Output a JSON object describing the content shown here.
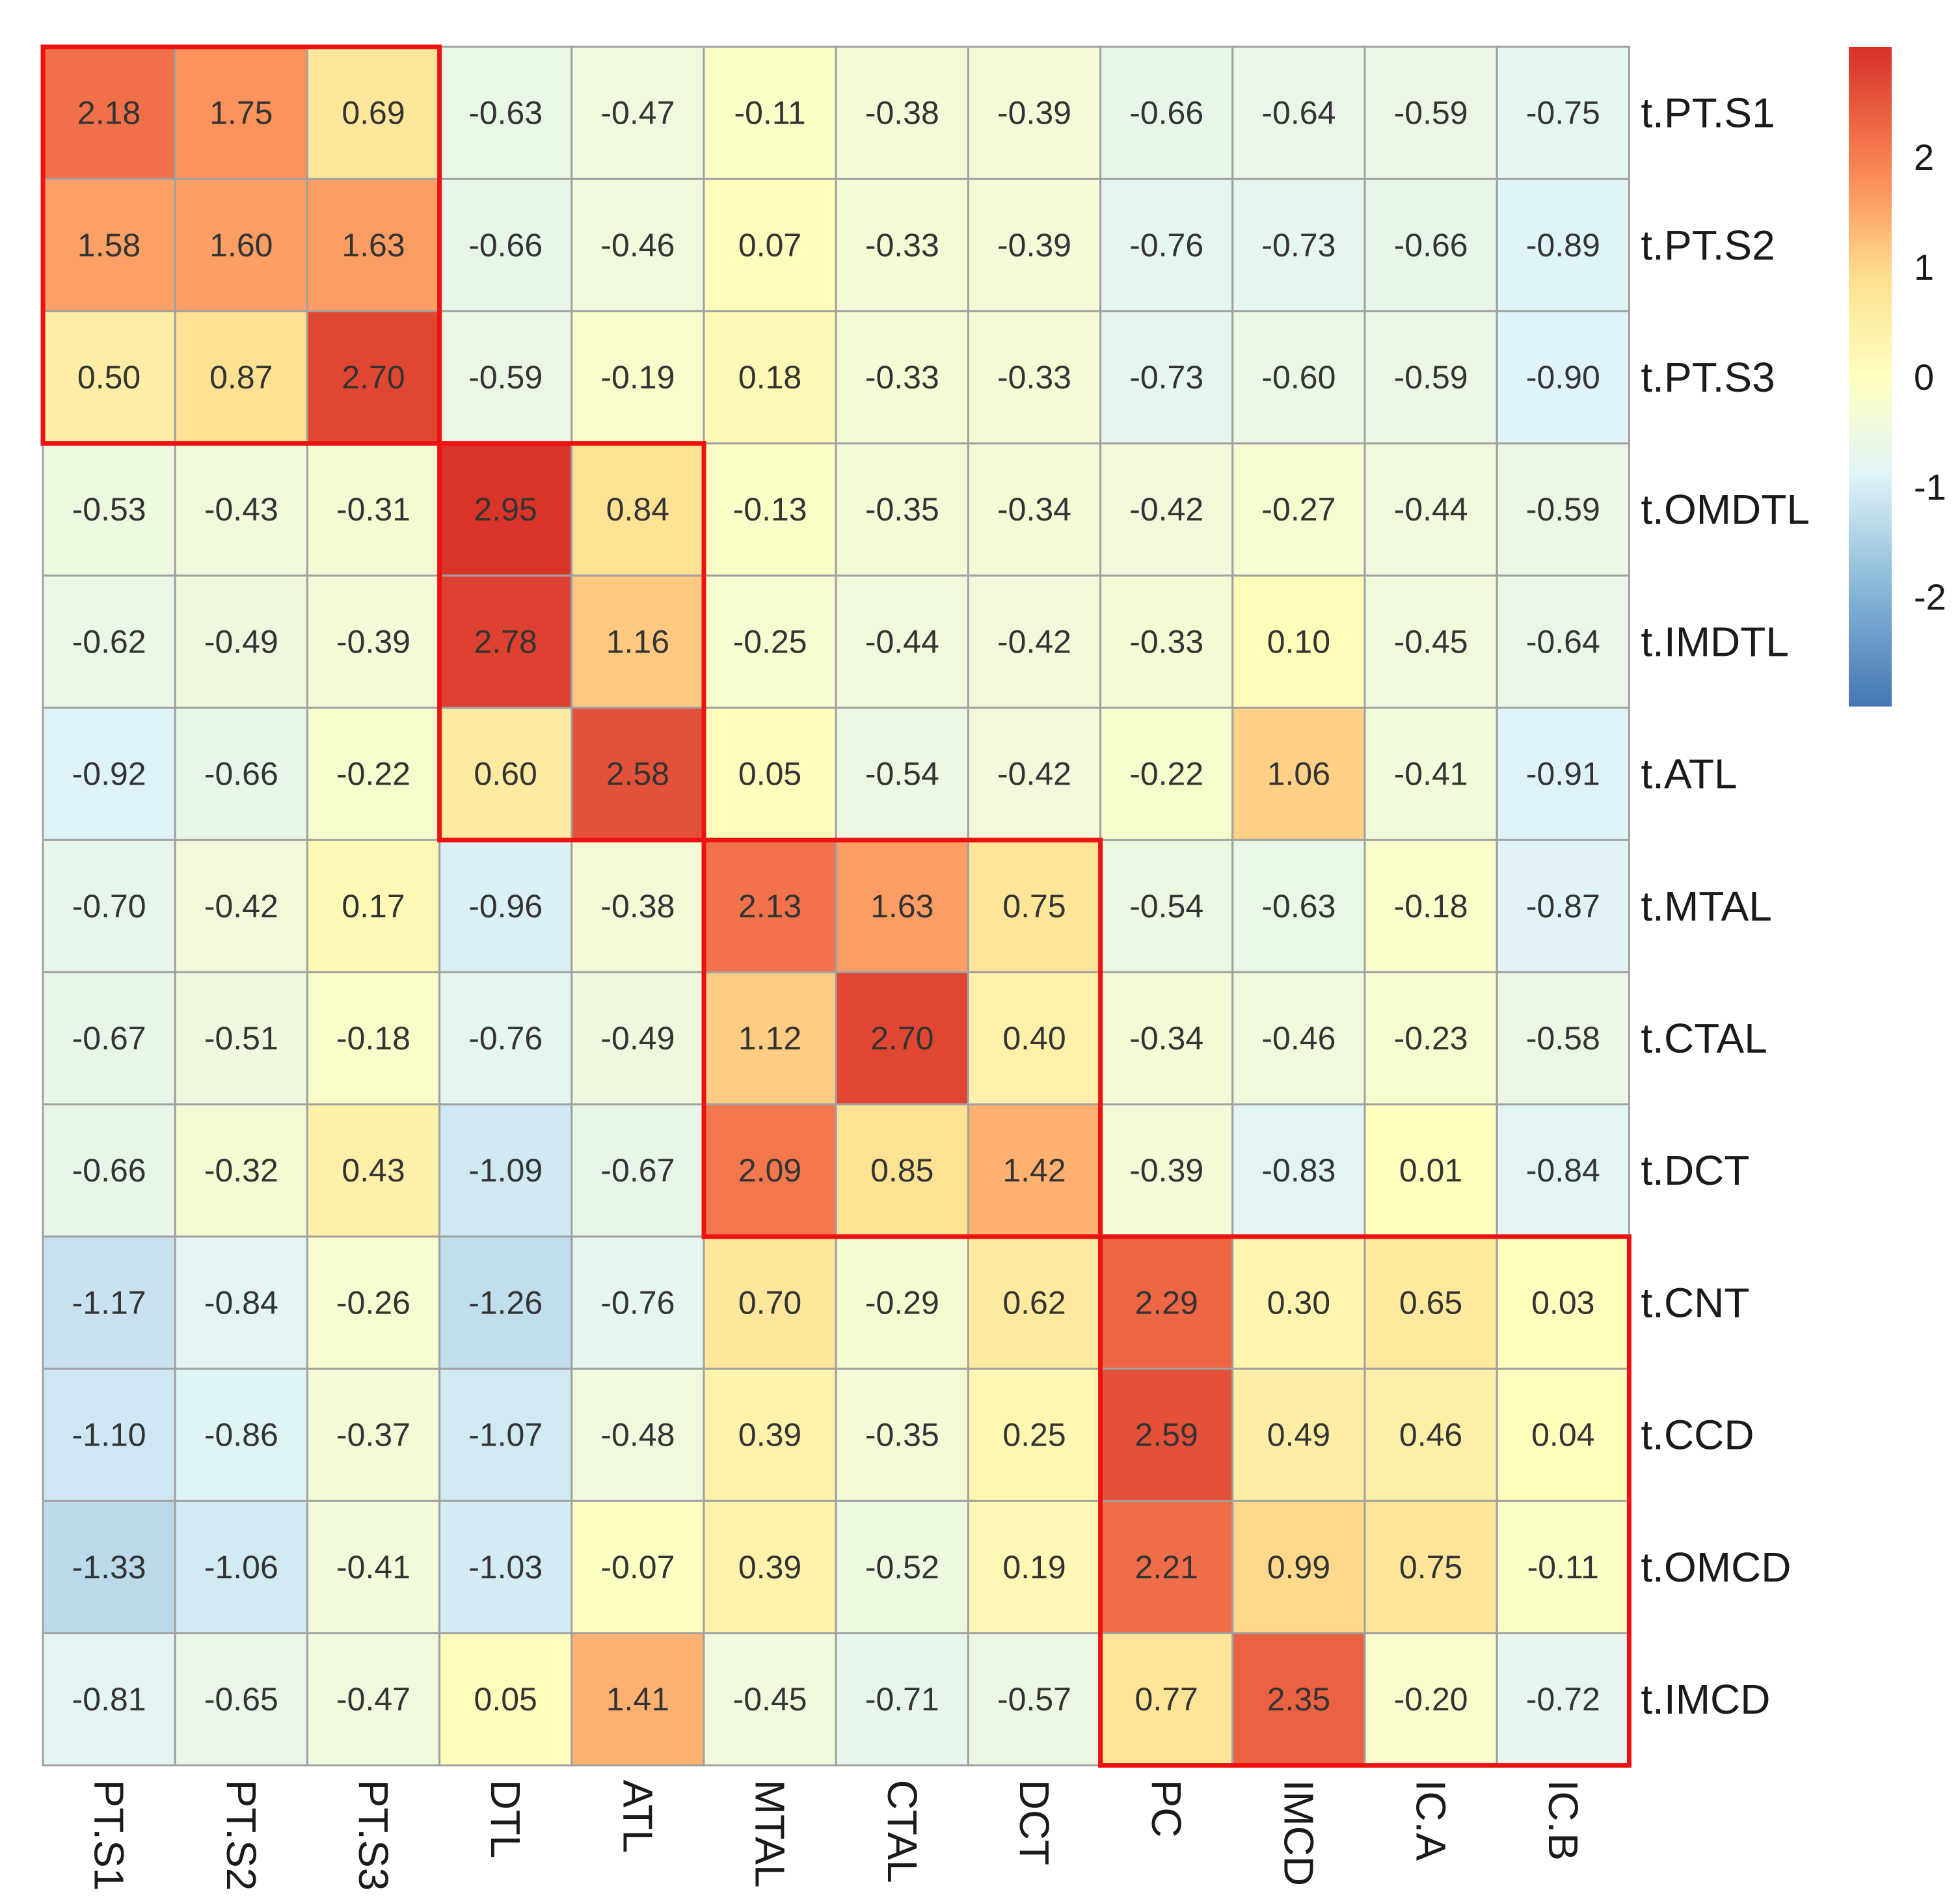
{
  "chart_data": {
    "type": "heatmap",
    "columns": [
      "PT.S1",
      "PT.S2",
      "PT.S3",
      "DTL",
      "ATL",
      "MTAL",
      "CTAL",
      "DCT",
      "PC",
      "IMCD",
      "IC.A",
      "IC.B"
    ],
    "rows": [
      "t.PT.S1",
      "t.PT.S2",
      "t.PT.S3",
      "t.OMDTL",
      "t.IMDTL",
      "t.ATL",
      "t.MTAL",
      "t.CTAL",
      "t.DCT",
      "t.CNT",
      "t.CCD",
      "t.OMCD",
      "t.IMCD"
    ],
    "values": [
      [
        "2.18",
        "1.75",
        "0.69",
        "-0.63",
        "-0.47",
        "-0.11",
        "-0.38",
        "-0.39",
        "-0.66",
        "-0.64",
        "-0.59",
        "-0.75"
      ],
      [
        "1.58",
        "1.60",
        "1.63",
        "-0.66",
        "-0.46",
        "0.07",
        "-0.33",
        "-0.39",
        "-0.76",
        "-0.73",
        "-0.66",
        "-0.89"
      ],
      [
        "0.50",
        "0.87",
        "2.70",
        "-0.59",
        "-0.19",
        "0.18",
        "-0.33",
        "-0.33",
        "-0.73",
        "-0.60",
        "-0.59",
        "-0.90"
      ],
      [
        "-0.53",
        "-0.43",
        "-0.31",
        "2.95",
        "0.84",
        "-0.13",
        "-0.35",
        "-0.34",
        "-0.42",
        "-0.27",
        "-0.44",
        "-0.59"
      ],
      [
        "-0.62",
        "-0.49",
        "-0.39",
        "2.78",
        "1.16",
        "-0.25",
        "-0.44",
        "-0.42",
        "-0.33",
        "0.10",
        "-0.45",
        "-0.64"
      ],
      [
        "-0.92",
        "-0.66",
        "-0.22",
        "0.60",
        "2.58",
        "0.05",
        "-0.54",
        "-0.42",
        "-0.22",
        "1.06",
        "-0.41",
        "-0.91"
      ],
      [
        "-0.70",
        "-0.42",
        "0.17",
        "-0.96",
        "-0.38",
        "2.13",
        "1.63",
        "0.75",
        "-0.54",
        "-0.63",
        "-0.18",
        "-0.87"
      ],
      [
        "-0.67",
        "-0.51",
        "-0.18",
        "-0.76",
        "-0.49",
        "1.12",
        "2.70",
        "0.40",
        "-0.34",
        "-0.46",
        "-0.23",
        "-0.58"
      ],
      [
        "-0.66",
        "-0.32",
        "0.43",
        "-1.09",
        "-0.67",
        "2.09",
        "0.85",
        "1.42",
        "-0.39",
        "-0.83",
        "0.01",
        "-0.84"
      ],
      [
        "-1.17",
        "-0.84",
        "-0.26",
        "-1.26",
        "-0.76",
        "0.70",
        "-0.29",
        "0.62",
        "2.29",
        "0.30",
        "0.65",
        "0.03"
      ],
      [
        "-1.10",
        "-0.86",
        "-0.37",
        "-1.07",
        "-0.48",
        "0.39",
        "-0.35",
        "0.25",
        "2.59",
        "0.49",
        "0.46",
        "0.04"
      ],
      [
        "-1.33",
        "-1.06",
        "-0.41",
        "-1.03",
        "-0.07",
        "0.39",
        "-0.52",
        "0.19",
        "2.21",
        "0.99",
        "0.75",
        "-0.11"
      ],
      [
        "-0.81",
        "-0.65",
        "-0.47",
        "0.05",
        "1.41",
        "-0.45",
        "-0.71",
        "-0.57",
        "0.77",
        "2.35",
        "-0.20",
        "-0.72"
      ]
    ],
    "color_scale": {
      "min": -3,
      "max": 3,
      "stops": [
        {
          "value": -3,
          "color": "#4575b4"
        },
        {
          "value": -1.8,
          "color": "#91bfdb"
        },
        {
          "value": -0.9,
          "color": "#e0f3f8"
        },
        {
          "value": 0,
          "color": "#ffffbf"
        },
        {
          "value": 0.9,
          "color": "#fee090"
        },
        {
          "value": 1.8,
          "color": "#fc8d59"
        },
        {
          "value": 3,
          "color": "#d73027"
        }
      ]
    },
    "legend_ticks": [
      2,
      1,
      0,
      -1,
      -2
    ],
    "legend_placement": "top-right",
    "cell_border_color": "#a0a0a0",
    "highlight_color": "#ee1111",
    "highlight_blocks": [
      {
        "rows": [
          0,
          2
        ],
        "cols": [
          0,
          2
        ]
      },
      {
        "rows": [
          3,
          5
        ],
        "cols": [
          3,
          4
        ]
      },
      {
        "rows": [
          6,
          8
        ],
        "cols": [
          5,
          7
        ]
      },
      {
        "rows": [
          9,
          12
        ],
        "cols": [
          8,
          11
        ]
      }
    ]
  }
}
